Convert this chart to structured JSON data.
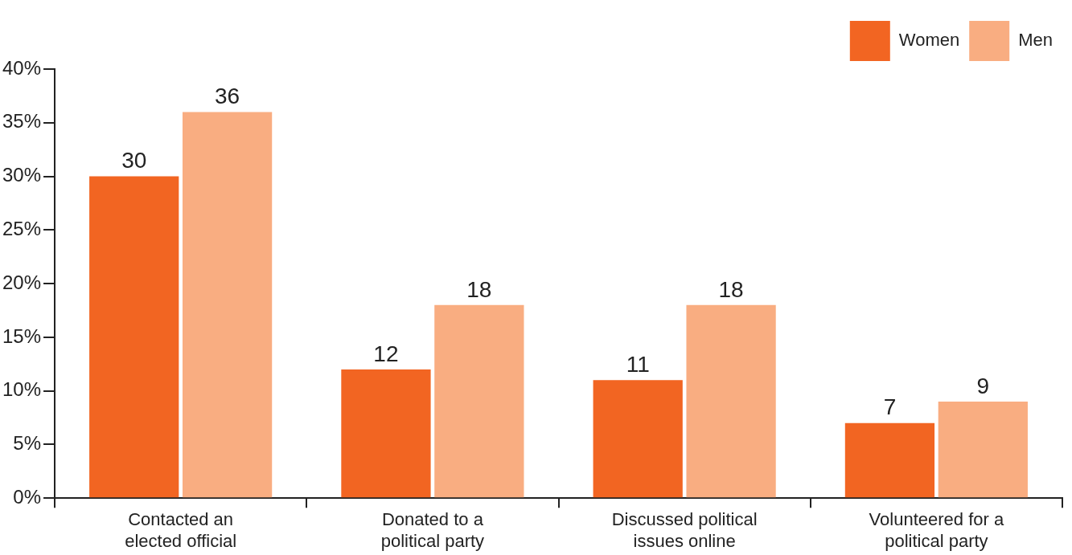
{
  "chart_data": {
    "type": "bar",
    "categories": [
      "Contacted an elected official",
      "Donated to a political party",
      "Discussed political issues online",
      "Volunteered for a political party"
    ],
    "series": [
      {
        "name": "Women",
        "color": "#f26522",
        "values": [
          30,
          12,
          11,
          7
        ]
      },
      {
        "name": "Men",
        "color": "#f9ad81",
        "values": [
          36,
          18,
          18,
          9
        ]
      }
    ],
    "ylim": [
      0,
      40
    ],
    "yticks": [
      {
        "value": 0,
        "label": "0%"
      },
      {
        "value": 5,
        "label": "5%"
      },
      {
        "value": 10,
        "label": "10%"
      },
      {
        "value": 15,
        "label": "15%"
      },
      {
        "value": 20,
        "label": "20%"
      },
      {
        "value": 25,
        "label": "25%"
      },
      {
        "value": 30,
        "label": "30%"
      },
      {
        "value": 35,
        "label": "35%"
      },
      {
        "value": 40,
        "label": "40%"
      }
    ],
    "data_labels": true,
    "grid": false,
    "legend": "top right"
  }
}
